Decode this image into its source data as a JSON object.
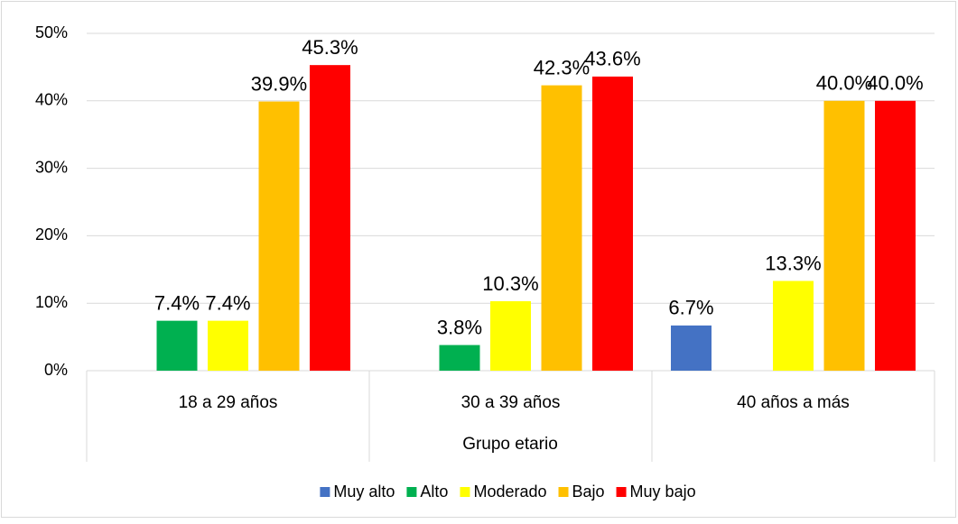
{
  "chart_data": {
    "type": "bar",
    "x_label": "Grupo etario",
    "categories": [
      "18 a 29 años",
      "30 a 39 años",
      "40 años a más"
    ],
    "series": [
      {
        "name": "Muy alto",
        "color": "#4472c4",
        "values": [
          null,
          null,
          6.7
        ],
        "value_labels": [
          null,
          null,
          "6.7%"
        ]
      },
      {
        "name": "Alto",
        "color": "#00b050",
        "values": [
          7.4,
          3.8,
          null
        ],
        "value_labels": [
          "7.4%",
          "3.8%",
          null
        ]
      },
      {
        "name": "Moderado",
        "color": "#ffff00",
        "values": [
          7.4,
          10.3,
          13.3
        ],
        "value_labels": [
          "7.4%",
          "10.3%",
          "13.3%"
        ]
      },
      {
        "name": "Bajo",
        "color": "#ffc000",
        "values": [
          39.9,
          42.3,
          40.0
        ],
        "value_labels": [
          "39.9%",
          "42.3%",
          "40.0%"
        ]
      },
      {
        "name": "Muy bajo",
        "color": "#ff0000",
        "values": [
          45.3,
          43.6,
          40.0
        ],
        "value_labels": [
          "45.3%",
          "43.6%",
          "40.0%"
        ]
      }
    ],
    "ylim": [
      0,
      50
    ],
    "yticks": [
      {
        "value": 0,
        "label": "0%"
      },
      {
        "value": 10,
        "label": "10%"
      },
      {
        "value": 20,
        "label": "20%"
      },
      {
        "value": 30,
        "label": "30%"
      },
      {
        "value": 40,
        "label": "40%"
      },
      {
        "value": 50,
        "label": "50%"
      }
    ],
    "grid": true,
    "legend": "bottom"
  }
}
